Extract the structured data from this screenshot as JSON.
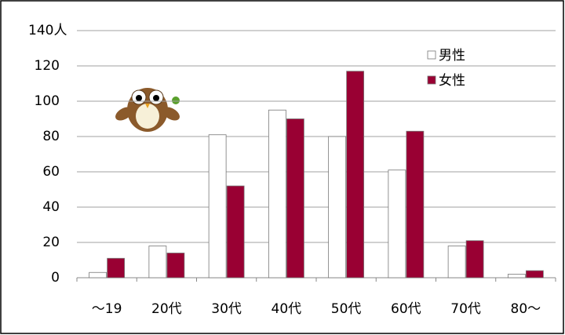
{
  "chart_data": {
    "type": "bar",
    "categories": [
      "～19",
      "20代",
      "30代",
      "40代",
      "50代",
      "60代",
      "70代",
      "80～"
    ],
    "series": [
      {
        "name": "男性",
        "color": "#ffffff",
        "values": [
          3,
          18,
          81,
          95,
          80,
          61,
          18,
          2
        ]
      },
      {
        "name": "女性",
        "color": "#990033",
        "values": [
          11,
          14,
          52,
          90,
          117,
          83,
          21,
          4
        ]
      }
    ],
    "ylim": [
      0,
      140
    ],
    "yticks": [
      0,
      20,
      40,
      60,
      80,
      100,
      120,
      {
        "value": 140,
        "label": "140人"
      }
    ],
    "grid": true,
    "legend": "top-right"
  }
}
